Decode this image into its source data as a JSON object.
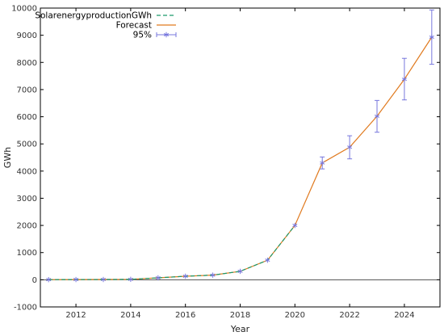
{
  "chart_data": {
    "type": "line",
    "xlabel": "Year",
    "ylabel": "GWh",
    "xlim": [
      2010.7,
      2025.3
    ],
    "ylim": [
      -1000,
      10000
    ],
    "x_ticks": [
      2012,
      2014,
      2016,
      2018,
      2020,
      2022,
      2024
    ],
    "y_ticks": [
      -1000,
      0,
      1000,
      2000,
      3000,
      4000,
      5000,
      6000,
      7000,
      8000,
      9000,
      10000
    ],
    "grid": false,
    "zero_line": true,
    "legend_position": "top-left",
    "series": [
      {
        "name": "SolarenergyproductionGWh",
        "style": "dashed",
        "color": "#1a9a6a",
        "x": [
          2011,
          2012,
          2013,
          2014,
          2015,
          2016,
          2017,
          2018,
          2019,
          2020
        ],
        "values": [
          5,
          8,
          10,
          15,
          70,
          130,
          170,
          310,
          720,
          2000
        ]
      },
      {
        "name": "Forecast",
        "style": "solid",
        "color": "#e07a1f",
        "x": [
          2011,
          2012,
          2013,
          2014,
          2015,
          2016,
          2017,
          2018,
          2019,
          2020,
          2021,
          2022,
          2023,
          2024,
          2025
        ],
        "values": [
          5,
          8,
          10,
          15,
          70,
          130,
          170,
          310,
          720,
          2000,
          4300,
          4880,
          6020,
          7380,
          8930
        ]
      },
      {
        "name": "95%",
        "style": "markers-errorbars",
        "color": "#7777dd",
        "x": [
          2011,
          2012,
          2013,
          2014,
          2015,
          2016,
          2017,
          2018,
          2019,
          2020,
          2021,
          2022,
          2023,
          2024,
          2025
        ],
        "values": [
          5,
          8,
          10,
          15,
          70,
          130,
          170,
          310,
          720,
          2000,
          4300,
          4880,
          6020,
          7380,
          8930
        ],
        "lower": [
          5,
          8,
          10,
          15,
          70,
          130,
          170,
          310,
          720,
          2000,
          4080,
          4450,
          5430,
          6620,
          7930
        ],
        "upper": [
          5,
          8,
          10,
          15,
          70,
          130,
          170,
          310,
          720,
          2000,
          4520,
          5300,
          6600,
          8150,
          9930
        ]
      }
    ]
  }
}
